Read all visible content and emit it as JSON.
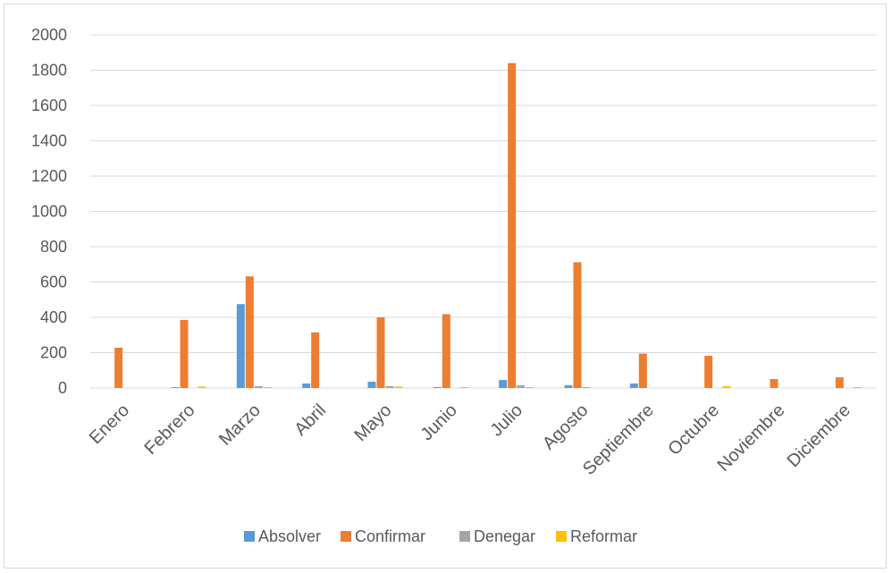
{
  "chart_data": {
    "type": "bar",
    "categories": [
      "Enero",
      "Febrero",
      "Marzo",
      "Abril",
      "Mayo",
      "Junio",
      "Julio",
      "Agosto",
      "Septiembre",
      "Octubre",
      "Noviembre",
      "Diciembre"
    ],
    "series": [
      {
        "name": "Absolver",
        "color": "#5b9bd5",
        "values": [
          0,
          5,
          475,
          25,
          35,
          5,
          45,
          15,
          25,
          0,
          0,
          0
        ]
      },
      {
        "name": "Confirmar",
        "color": "#ed7d31",
        "values": [
          228,
          385,
          632,
          315,
          400,
          418,
          1840,
          712,
          195,
          182,
          50,
          60
        ]
      },
      {
        "name": "Denegar",
        "color": "#a5a5a5",
        "values": [
          0,
          0,
          10,
          0,
          10,
          0,
          15,
          5,
          0,
          0,
          0,
          0
        ]
      },
      {
        "name": "Reformar",
        "color": "#ffc000",
        "values": [
          0,
          8,
          5,
          0,
          8,
          5,
          5,
          0,
          0,
          10,
          0,
          5
        ]
      }
    ],
    "y_ticks": [
      "0",
      "200",
      "400",
      "600",
      "800",
      "1000",
      "1200",
      "1400",
      "1600",
      "1800",
      "2000"
    ],
    "ylim": [
      0,
      2000
    ],
    "grid": true,
    "legend_position": "bottom",
    "gridline_color": "#d9d9d9",
    "text_color": "#595959"
  }
}
